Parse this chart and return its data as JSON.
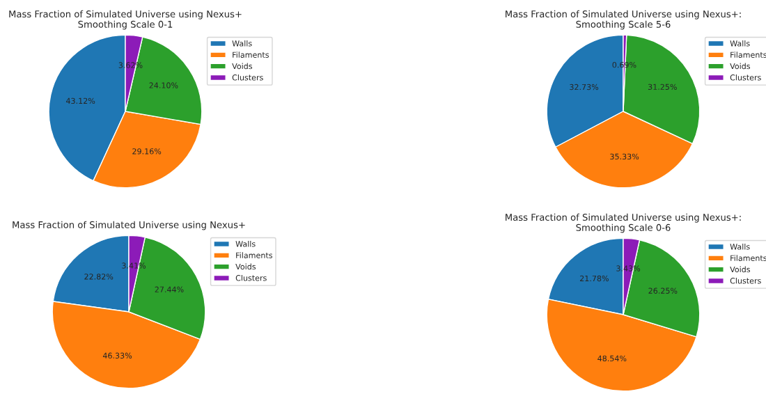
{
  "chart_data": [
    {
      "type": "pie",
      "title": "Mass Fraction of Simulated Universe using Nexus+\nSmoothing Scale 0-1",
      "categories": [
        "Walls",
        "Filaments",
        "Voids",
        "Clusters"
      ],
      "values": [
        43.12,
        29.16,
        24.1,
        3.62
      ],
      "colors": [
        "#1f77b4",
        "#ff7f0e",
        "#2ca02c",
        "#8c1bb8"
      ],
      "value_labels": [
        "43.12%",
        "29.16%",
        "24.10%",
        "3.62%"
      ],
      "legend": "top right"
    },
    {
      "type": "pie",
      "title": "Mass Fraction of Simulated Universe using Nexus+:\nSmoothing Scale 5-6",
      "categories": [
        "Walls",
        "Filaments",
        "Voids",
        "Clusters"
      ],
      "values": [
        32.73,
        35.33,
        31.25,
        0.69
      ],
      "colors": [
        "#1f77b4",
        "#ff7f0e",
        "#2ca02c",
        "#8c1bb8"
      ],
      "value_labels": [
        "32.73%",
        "35.33%",
        "31.25%",
        "0.69%"
      ],
      "legend": "top right"
    },
    {
      "type": "pie",
      "title": "Mass Fraction of Simulated Universe using Nexus+",
      "categories": [
        "Walls",
        "Filaments",
        "Voids",
        "Clusters"
      ],
      "values": [
        22.82,
        46.33,
        27.44,
        3.41
      ],
      "colors": [
        "#1f77b4",
        "#ff7f0e",
        "#2ca02c",
        "#8c1bb8"
      ],
      "value_labels": [
        "22.82%",
        "46.33%",
        "27.44%",
        "3.41%"
      ],
      "legend": "top right"
    },
    {
      "type": "pie",
      "title": "Mass Fraction of Simulated Universe using Nexus+:\nSmoothing Scale 0-6",
      "categories": [
        "Walls",
        "Filaments",
        "Voids",
        "Clusters"
      ],
      "values": [
        21.78,
        48.54,
        26.25,
        3.43
      ],
      "colors": [
        "#1f77b4",
        "#ff7f0e",
        "#2ca02c",
        "#8c1bb8"
      ],
      "value_labels": [
        "21.78%",
        "48.54%",
        "26.25%",
        "3.43%"
      ],
      "legend": "top right"
    }
  ]
}
